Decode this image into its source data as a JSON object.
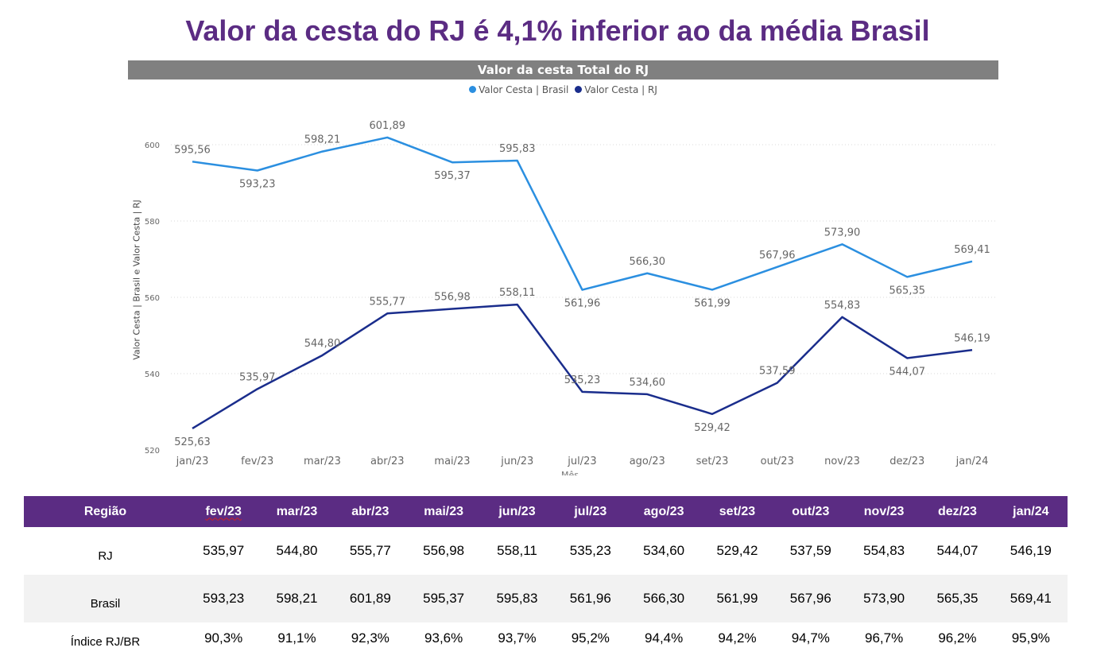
{
  "title": "Valor da cesta do RJ é 4,1% inferior ao da média Brasil",
  "chart_data": {
    "type": "line",
    "title": "Valor da cesta Total do RJ",
    "ylabel": "Valor Cesta | Brasil e Valor Cesta | RJ",
    "xlabel": "Mês",
    "categories": [
      "jan/23",
      "fev/23",
      "mar/23",
      "abr/23",
      "mai/23",
      "jun/23",
      "jul/23",
      "ago/23",
      "set/23",
      "out/23",
      "nov/23",
      "dez/23",
      "jan/24"
    ],
    "ylim": [
      520,
      605
    ],
    "yticks": [
      520,
      540,
      560,
      580,
      600
    ],
    "grid": true,
    "legend_position": "top-center",
    "series": [
      {
        "name": "Valor Cesta | Brasil",
        "color": "#2b8fe0",
        "values": [
          595.56,
          593.23,
          598.21,
          601.89,
          595.37,
          595.83,
          561.96,
          566.3,
          561.99,
          567.96,
          573.9,
          565.35,
          569.41
        ],
        "labels": [
          "595,56",
          "593,23",
          "598,21",
          "601,89",
          "595,37",
          "595,83",
          "561,96",
          "566,30",
          "561,99",
          "567,96",
          "573,90",
          "565,35",
          "569,41"
        ],
        "label_pos": [
          "above",
          "below",
          "above",
          "above",
          "below",
          "above",
          "below",
          "above",
          "below",
          "above",
          "above",
          "below",
          "above"
        ]
      },
      {
        "name": "Valor Cesta | RJ",
        "color": "#1a2d8c",
        "values": [
          525.63,
          535.97,
          544.8,
          555.77,
          556.98,
          558.11,
          535.23,
          534.6,
          529.42,
          537.59,
          554.83,
          544.07,
          546.19
        ],
        "labels": [
          "525,63",
          "535,97",
          "544,80",
          "555,77",
          "556,98",
          "558,11",
          "535,23",
          "534,60",
          "529,42",
          "537,59",
          "554,83",
          "544,07",
          "546,19"
        ],
        "label_pos": [
          "below",
          "above",
          "above",
          "above",
          "above",
          "above",
          "above",
          "above",
          "below",
          "above",
          "above",
          "below",
          "above"
        ]
      }
    ]
  },
  "table": {
    "header_label": "Região",
    "months": [
      "fev/23",
      "mar/23",
      "abr/23",
      "mai/23",
      "jun/23",
      "jul/23",
      "ago/23",
      "set/23",
      "out/23",
      "nov/23",
      "dez/23",
      "jan/24"
    ],
    "rows": [
      {
        "label": "RJ",
        "values": [
          "535,97",
          "544,80",
          "555,77",
          "556,98",
          "558,11",
          "535,23",
          "534,60",
          "529,42",
          "537,59",
          "554,83",
          "544,07",
          "546,19"
        ]
      },
      {
        "label": "Brasil",
        "values": [
          "593,23",
          "598,21",
          "601,89",
          "595,37",
          "595,83",
          "561,96",
          "566,30",
          "561,99",
          "567,96",
          "573,90",
          "565,35",
          "569,41"
        ]
      },
      {
        "label": "Índice RJ/BR",
        "values": [
          "90,3%",
          "91,1%",
          "92,3%",
          "93,6%",
          "93,7%",
          "95,2%",
          "94,4%",
          "94,2%",
          "94,7%",
          "96,7%",
          "96,2%",
          "95,9%"
        ]
      }
    ]
  }
}
